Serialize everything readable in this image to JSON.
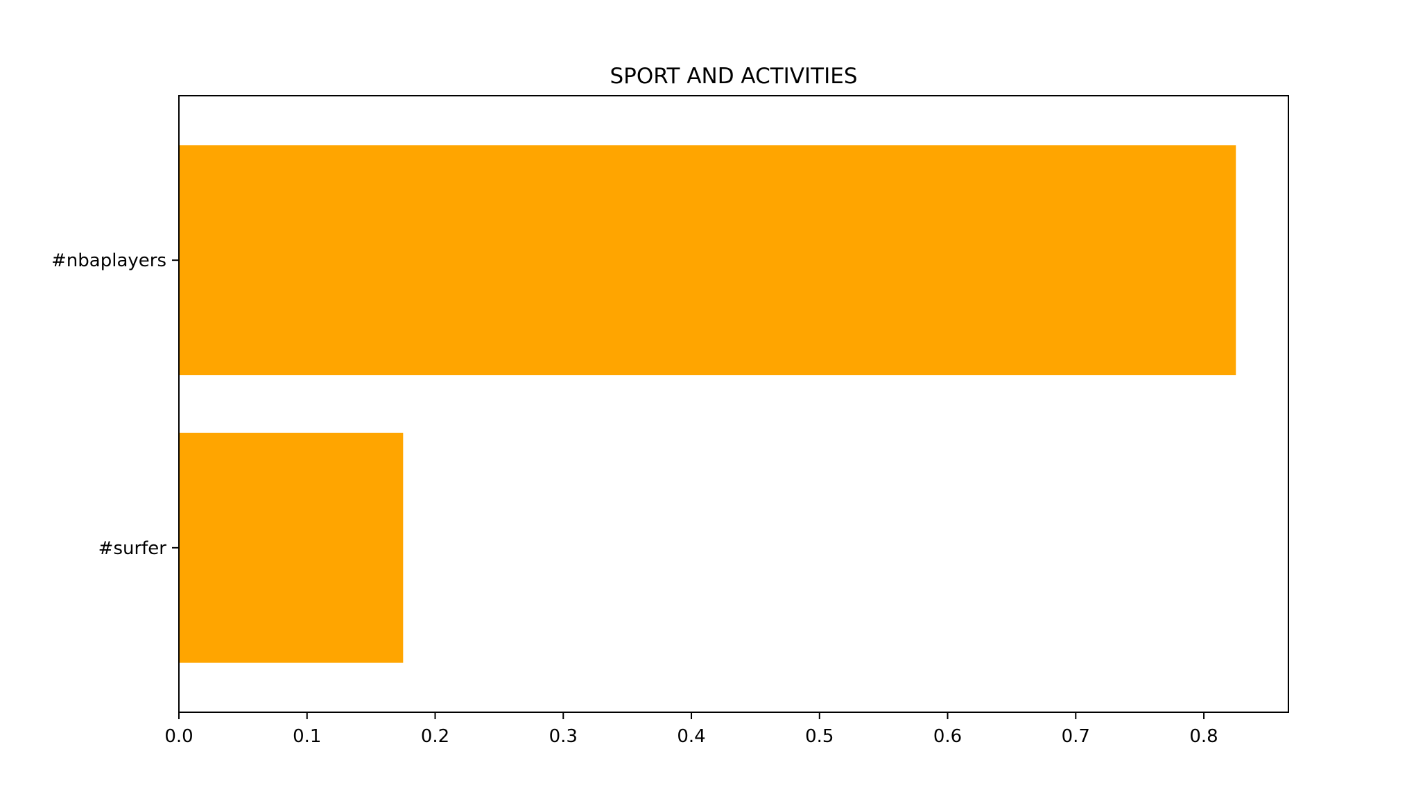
{
  "chart_data": {
    "type": "bar",
    "orientation": "horizontal",
    "title": "SPORT AND ACTIVITIES",
    "xlabel": "",
    "ylabel": "",
    "categories": [
      "#nbaplayers",
      "#surfer"
    ],
    "values": [
      0.825,
      0.175
    ],
    "xlim": [
      0.0,
      0.866
    ],
    "xticks": [
      "0.0",
      "0.1",
      "0.2",
      "0.3",
      "0.4",
      "0.5",
      "0.6",
      "0.7",
      "0.8"
    ],
    "grid": false,
    "legend": "none",
    "bar_color": "#FFA500"
  }
}
